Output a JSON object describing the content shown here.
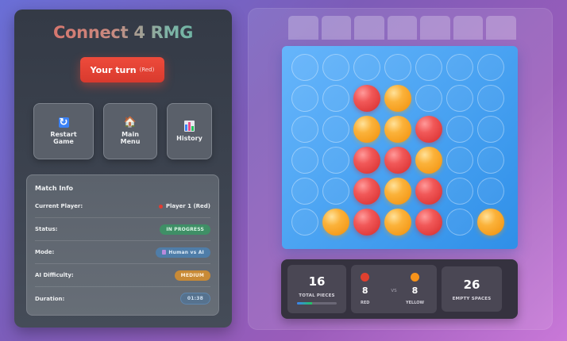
{
  "app": {
    "title": "Connect 4 RMG"
  },
  "turn": {
    "label": "Your turn",
    "player": "(Red)",
    "color": "#e8442f"
  },
  "actions": [
    {
      "id": "restart",
      "label_line1": "Restart",
      "label_line2": "Game",
      "icon": "restart-icon"
    },
    {
      "id": "menu",
      "label_line1": "Main",
      "label_line2": "Menu",
      "icon": "house-icon"
    },
    {
      "id": "history",
      "label_line1": "History",
      "label_line2": "",
      "icon": "bar-chart-icon"
    }
  ],
  "match_info": {
    "title": "Match Info",
    "rows": [
      {
        "label": "Current Player:",
        "value": "Player 1 (Red)"
      },
      {
        "label": "Status:",
        "value": "IN PROGRESS"
      },
      {
        "label": "Mode:",
        "value": "Human vs AI"
      },
      {
        "label": "AI Difficulty:",
        "value": "MEDIUM"
      },
      {
        "label": "Duration:",
        "value": "01:38"
      }
    ]
  },
  "board": {
    "rows": 6,
    "cols": 7,
    "cells": [
      [
        "",
        "",
        "",
        "",
        "",
        "",
        ""
      ],
      [
        "",
        "",
        "R",
        "Y",
        "",
        "",
        ""
      ],
      [
        "",
        "",
        "Y",
        "Y",
        "R",
        "",
        ""
      ],
      [
        "",
        "",
        "R",
        "R",
        "Y",
        "",
        ""
      ],
      [
        "",
        "",
        "R",
        "Y",
        "R",
        "",
        ""
      ],
      [
        "",
        "Y",
        "R",
        "Y",
        "R",
        "",
        "Y"
      ]
    ],
    "colors": {
      "red": "#ec4f4f",
      "yellow": "#f8a82a",
      "board": "#4aa3f2"
    }
  },
  "stats": {
    "total_pieces": "16",
    "total_pieces_label": "TOTAL PIECES",
    "progress_percent": 38,
    "red_count": "8",
    "red_label": "RED",
    "vs_label": "VS",
    "yellow_count": "8",
    "yellow_label": "YELLOW",
    "empty_spaces": "26",
    "empty_spaces_label": "EMPTY SPACES"
  }
}
